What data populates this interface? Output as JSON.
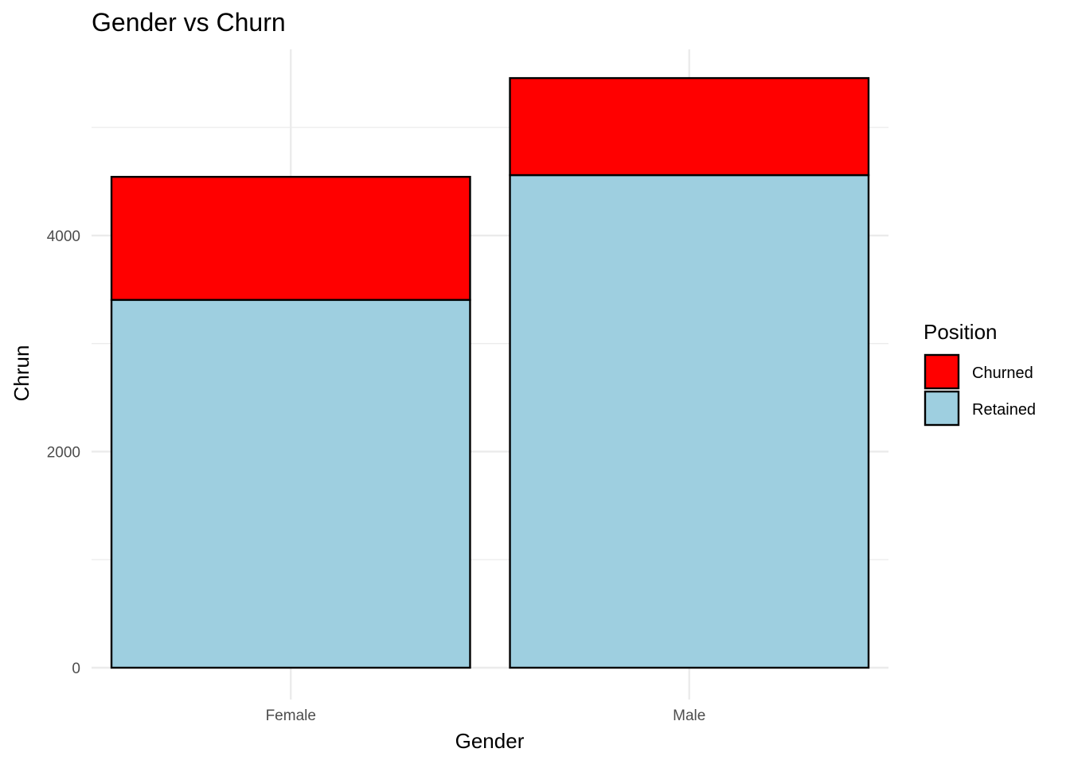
{
  "chart_data": {
    "type": "bar",
    "stacked": true,
    "title": "Gender vs Churn",
    "xlabel": "Gender",
    "ylabel": "Chrun",
    "categories": [
      "Female",
      "Male"
    ],
    "series": [
      {
        "name": "Churned",
        "values": [
          1139,
          898
        ],
        "color": "#ff0000"
      },
      {
        "name": "Retained",
        "values": [
          3404,
          4559
        ],
        "color": "#9ecfe0"
      }
    ],
    "ylim": [
      0,
      5723
    ],
    "yticks": [
      0,
      2000,
      4000
    ],
    "grid": true,
    "legend": {
      "title": "Position",
      "position": "right"
    }
  }
}
